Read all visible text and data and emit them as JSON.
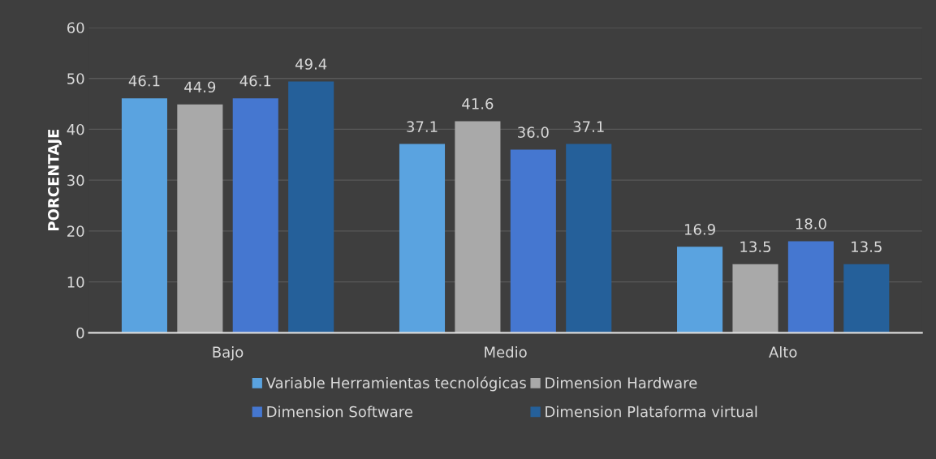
{
  "chart_data": {
    "type": "bar",
    "ylabel": "PORCENTAJE",
    "categories": [
      "Bajo",
      "Medio",
      "Alto"
    ],
    "series": [
      {
        "name": "Variable Herramientas tecnológicas",
        "color": "#5aa3e0",
        "values": [
          46.1,
          37.1,
          16.9
        ],
        "value_labels": [
          "46.1",
          "37.1",
          "16.9"
        ]
      },
      {
        "name": "Dimension Hardware",
        "color": "#a9a9a9",
        "values": [
          44.9,
          41.6,
          13.5
        ],
        "value_labels": [
          "44.9",
          "41.6",
          "13.5"
        ]
      },
      {
        "name": "Dimension Software",
        "color": "#4577d0",
        "values": [
          46.1,
          36.0,
          18.0
        ],
        "value_labels": [
          "46.1",
          "36.0",
          "18.0"
        ]
      },
      {
        "name": "Dimension Plataforma virtual",
        "color": "#25609a",
        "values": [
          49.4,
          37.1,
          13.5
        ],
        "value_labels": [
          "49.4",
          "37.1",
          "13.5"
        ]
      }
    ],
    "ylim": [
      0,
      60
    ],
    "yticks": [
      0,
      10,
      20,
      30,
      40,
      50,
      60
    ],
    "grid": "y",
    "legend": "bottom"
  }
}
